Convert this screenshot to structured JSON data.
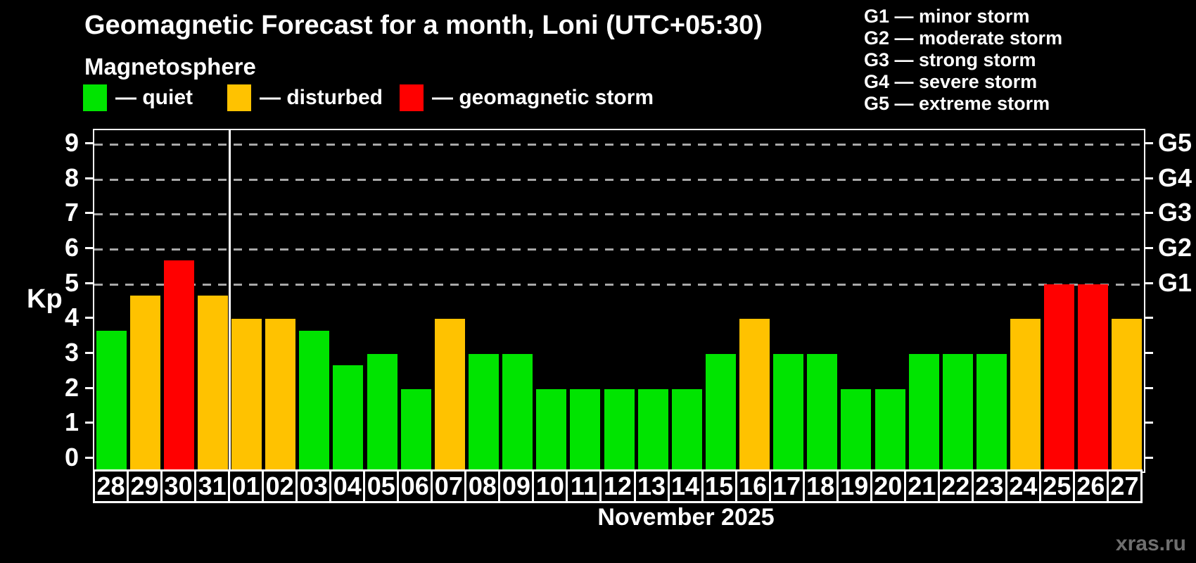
{
  "header": {
    "title": "Geomagnetic Forecast for a month, Loni (UTC+05:30)",
    "subtitle": "Magnetosphere"
  },
  "legend": {
    "items": [
      {
        "status": "quiet",
        "label": "— quiet",
        "color": "#00e400"
      },
      {
        "status": "disturbed",
        "label": "— disturbed",
        "color": "#ffc200"
      },
      {
        "status": "storm",
        "label": "— geomagnetic storm",
        "color": "#ff0000"
      }
    ]
  },
  "storm_scale_legend": {
    "items": [
      "G1 — minor storm",
      "G2 — moderate storm",
      "G3 — strong storm",
      "G4 — severe storm",
      "G5 — extreme storm"
    ]
  },
  "colors": {
    "background": "#000000",
    "quiet": "#00e400",
    "disturbed": "#ffc200",
    "storm": "#ff0000",
    "axis": "#ffffff",
    "grid": "#a8a8a8",
    "watermark": "#6f6f6f"
  },
  "chart_data": {
    "type": "bar",
    "ylabel": "Kp",
    "xlabel": "November 2025",
    "ylim": [
      0,
      9
    ],
    "yticks": [
      0,
      1,
      2,
      3,
      4,
      5,
      6,
      7,
      8,
      9
    ],
    "gridlines_kp": [
      5,
      6,
      7,
      8,
      9
    ],
    "right_axis_labels": [
      {
        "kp": 5,
        "label": "G1"
      },
      {
        "kp": 6,
        "label": "G2"
      },
      {
        "kp": 7,
        "label": "G3"
      },
      {
        "kp": 8,
        "label": "G4"
      },
      {
        "kp": 9,
        "label": "G5"
      }
    ],
    "grid": "dashed-storm-levels-only",
    "legend_position": "top",
    "month_separator_after_index": 3,
    "categories": [
      "28",
      "29",
      "30",
      "31",
      "01",
      "02",
      "03",
      "04",
      "05",
      "06",
      "07",
      "08",
      "09",
      "10",
      "11",
      "12",
      "13",
      "14",
      "15",
      "16",
      "17",
      "18",
      "19",
      "20",
      "21",
      "22",
      "23",
      "24",
      "25",
      "26",
      "27"
    ],
    "values": [
      3.67,
      4.67,
      5.67,
      4.67,
      4,
      4,
      3.67,
      2.67,
      3,
      2,
      4,
      3,
      3,
      2,
      2,
      2,
      2,
      2,
      3,
      4,
      3,
      3,
      2,
      2,
      3,
      3,
      3,
      4,
      5,
      5,
      4
    ],
    "statuses": [
      "quiet",
      "disturbed",
      "storm",
      "disturbed",
      "disturbed",
      "disturbed",
      "quiet",
      "quiet",
      "quiet",
      "quiet",
      "disturbed",
      "quiet",
      "quiet",
      "quiet",
      "quiet",
      "quiet",
      "quiet",
      "quiet",
      "quiet",
      "disturbed",
      "quiet",
      "quiet",
      "quiet",
      "quiet",
      "quiet",
      "quiet",
      "quiet",
      "disturbed",
      "storm",
      "storm",
      "disturbed"
    ]
  },
  "watermark": "xras.ru"
}
